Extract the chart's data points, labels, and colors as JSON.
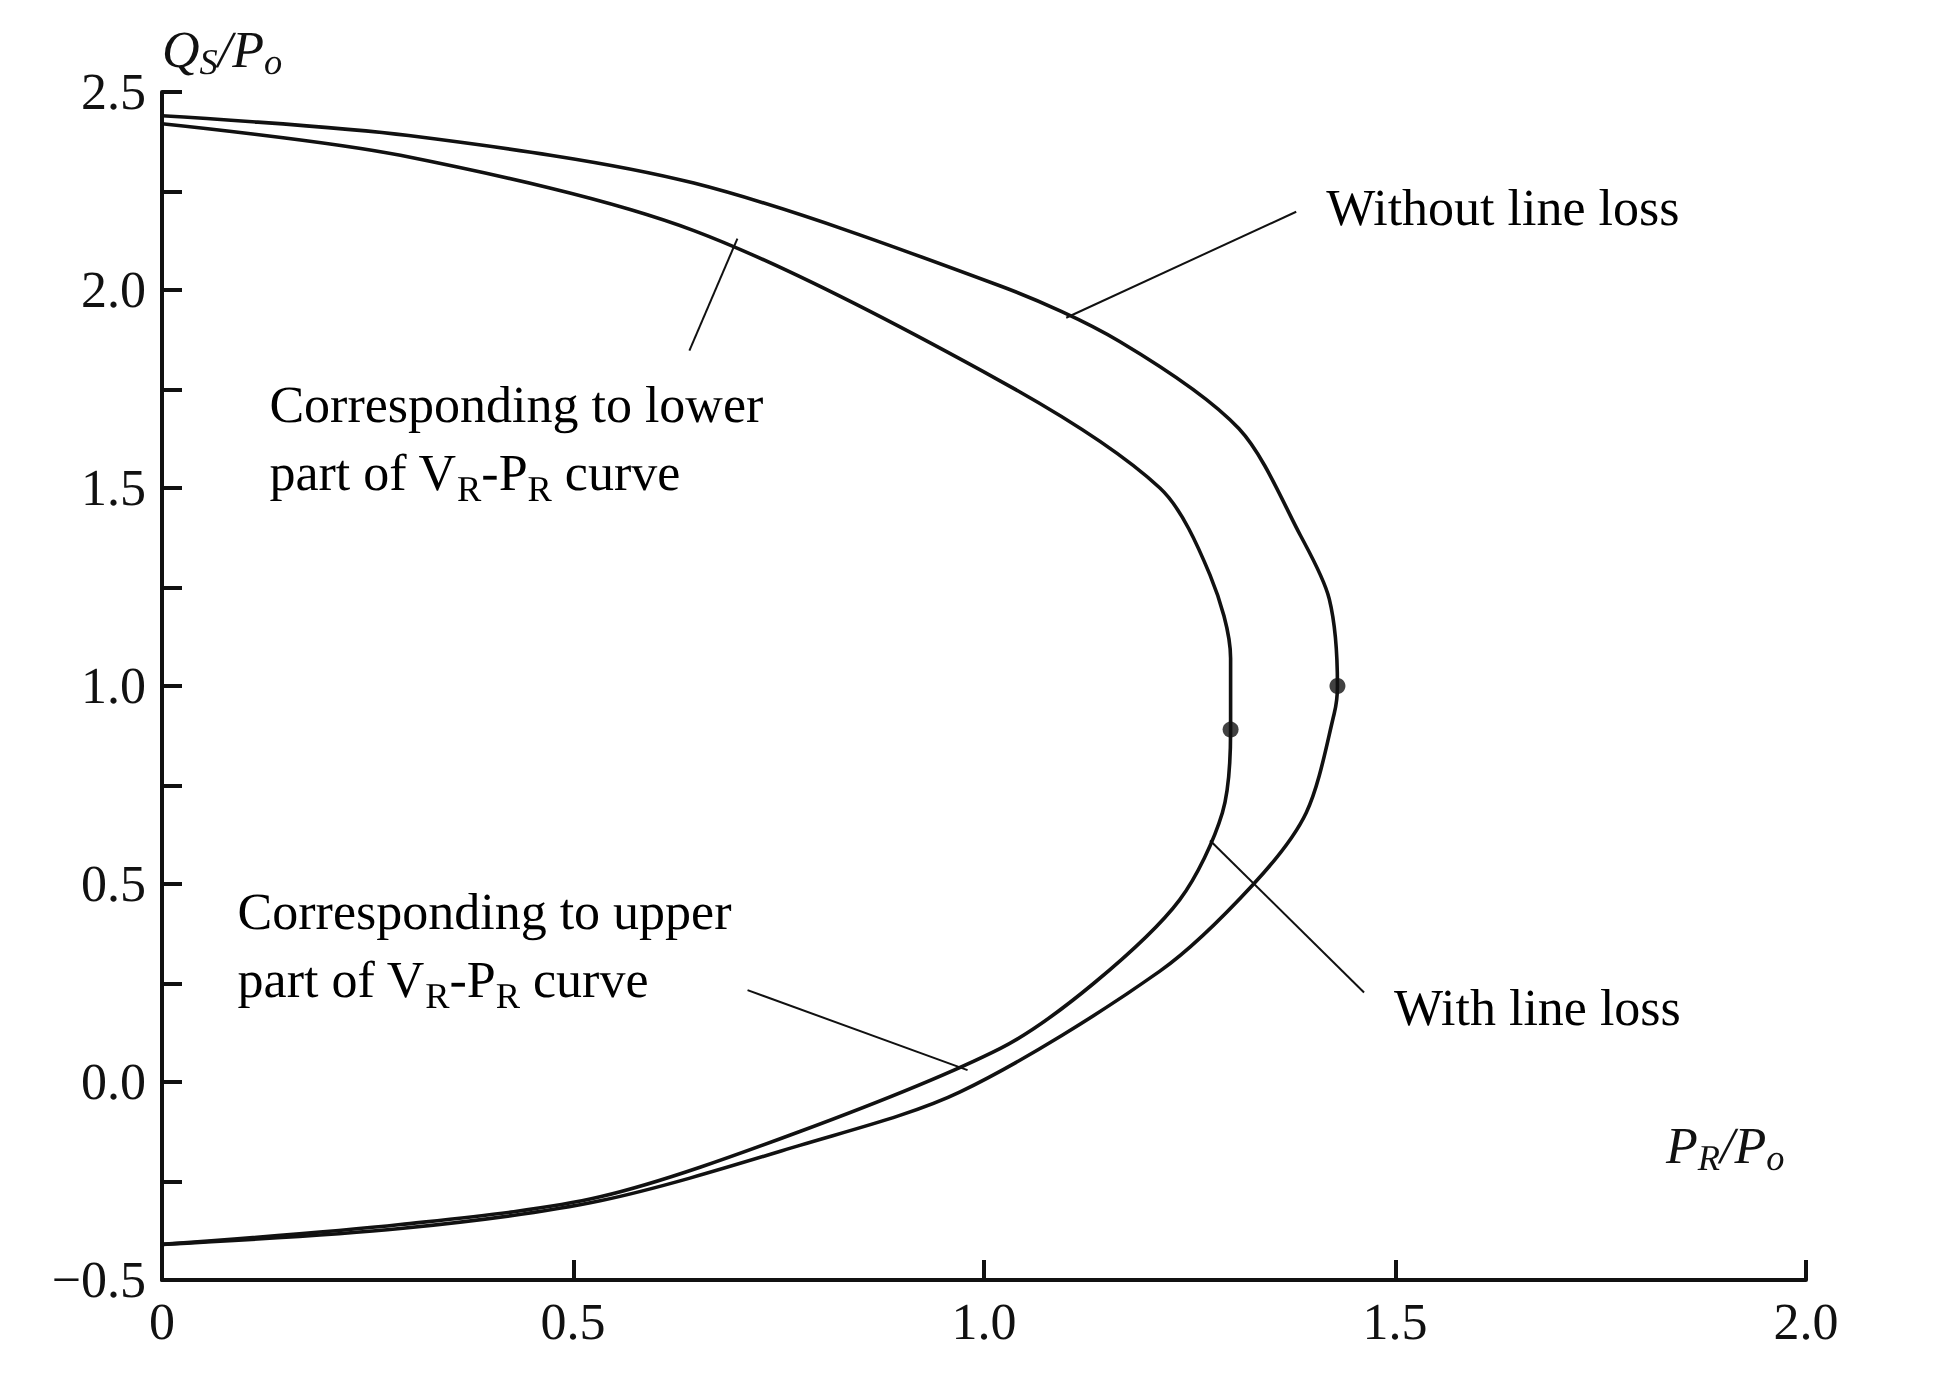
{
  "chart_data": {
    "type": "line",
    "xlabel": "P$_{R}$/P$_{o}$",
    "ylabel": "Q$_{S}$/P$_{o}$",
    "xlim": [
      0,
      2.0
    ],
    "xticks": [
      {
        "value": 0,
        "label": "0"
      },
      0.5,
      {
        "value": 1,
        "label": "1.0"
      },
      1.5,
      {
        "value": 2,
        "label": "2.0"
      }
    ],
    "ylim": [
      -0.5,
      2.5
    ],
    "yticks": [
      {
        "value": -0.5,
        "label": "−0.5"
      },
      {
        "value": -0.25,
        "label": null
      },
      {
        "value": 0,
        "label": "0.0"
      },
      {
        "value": 0.25,
        "label": null
      },
      0.5,
      {
        "value": 0.75,
        "label": null
      },
      {
        "value": 1,
        "label": "1.0"
      },
      {
        "value": 1.25,
        "label": null
      },
      1.5,
      {
        "value": 1.75,
        "label": null
      },
      {
        "value": 2,
        "label": "2.0"
      },
      {
        "value": 2.25,
        "label": null
      },
      2.5
    ],
    "grid": false,
    "marker": "none",
    "line_style": "solid",
    "series": [
      {
        "color": "#111111",
        "x": [
          0,
          0.3,
          0.647,
          1.02,
          1.165,
          1.31,
          1.385,
          1.42,
          1.43,
          1.426,
          1.392,
          1.328,
          1.214,
          0.971,
          0.776,
          0.533,
          0.29,
          0
        ],
        "values": [
          2.44,
          2.39,
          2.27,
          2.01,
          1.87,
          1.65,
          1.38,
          1.22,
          1.0,
          0.93,
          0.68,
          0.5,
          0.28,
          -0.025,
          -0.16,
          -0.3,
          -0.37,
          -0.41
        ]
      },
      {
        "color": "#111111",
        "x": [
          0,
          0.29,
          0.647,
          1.02,
          1.214,
          1.275,
          1.3,
          1.3,
          1.29,
          1.238,
          1.134,
          1.02,
          0.776,
          0.533,
          0.29,
          0
        ],
        "values": [
          2.42,
          2.34,
          2.15,
          1.77,
          1.5,
          1.28,
          1.07,
          0.89,
          0.68,
          0.46,
          0.25,
          0.085,
          -0.125,
          -0.29,
          -0.36,
          -0.41
        ]
      },
      {
        "type": "scatter",
        "marker": "circle",
        "color": "#111111",
        "x": [
          1.43,
          1.3
        ],
        "values": [
          1.0,
          0.89
        ]
      }
    ],
    "annotations": [
      {
        "text": "Without line loss",
        "x": 1.1,
        "y": 1.93
      },
      {
        "text": "With line loss",
        "x": 1.275,
        "y": 0.61
      },
      {
        "text": "Corresponding to lower\npart of V$_{R}$-P$_{R}$ curve",
        "x": 0.7,
        "y": 2.13
      },
      {
        "text": "Corresponding to upper\npart of V$_{R}$-P$_{R}$ curve",
        "x": 0.98,
        "y": 0.03
      }
    ]
  }
}
